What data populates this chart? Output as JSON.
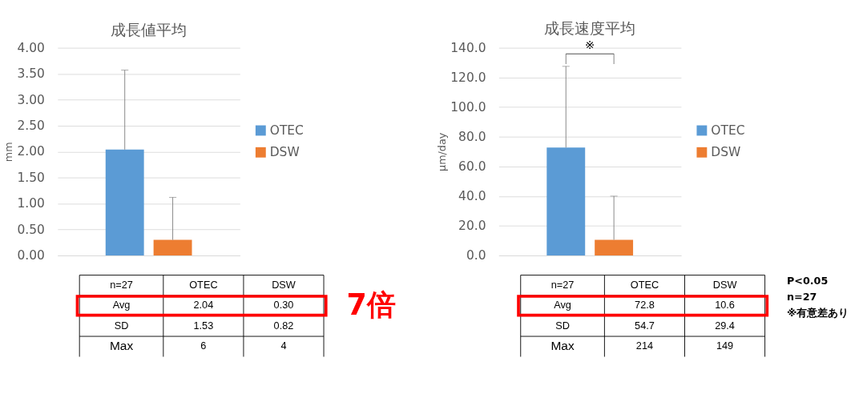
{
  "chart_data": [
    {
      "type": "bar",
      "title": "成長値平均",
      "ylabel": "mm",
      "categories": [
        null
      ],
      "ylim": [
        0,
        4
      ],
      "yticks": [
        {
          "value": 0,
          "label": "0.00"
        },
        {
          "value": 0.5,
          "label": "0.50"
        },
        {
          "value": 1,
          "label": "1.00"
        },
        {
          "value": 1.5,
          "label": "1.50"
        },
        {
          "value": 2,
          "label": "2.00"
        },
        {
          "value": 2.5,
          "label": "2.50"
        },
        {
          "value": 3,
          "label": "3.00"
        },
        {
          "value": 3.5,
          "label": "3.50"
        },
        {
          "value": 4,
          "label": "4.00"
        }
      ],
      "grid": "y",
      "legend": "right",
      "series": [
        {
          "name": "OTEC",
          "color": "#5b9bd5",
          "values": [
            2.04
          ],
          "errors": [
            [
              2.04,
              3.57
            ]
          ]
        },
        {
          "name": "DSW",
          "color": "#ed7d31",
          "values": [
            0.3
          ],
          "errors": [
            [
              0.3,
              1.12
            ]
          ]
        }
      ],
      "annotations": [
        "n=27",
        "OTEC",
        "DSW",
        "Avg",
        "2.04",
        "0.30",
        "SD",
        "1.53",
        "0.82",
        "Max",
        "6",
        "4",
        "7倍"
      ]
    },
    {
      "type": "bar",
      "title": "成長速度平均",
      "ylabel": "µm/day",
      "categories": [
        null
      ],
      "ylim": [
        0,
        140
      ],
      "yticks": [
        {
          "value": 0,
          "label": "0.0"
        },
        {
          "value": 20,
          "label": "20.0"
        },
        {
          "value": 40,
          "label": "40.0"
        },
        {
          "value": 60,
          "label": "60.0"
        },
        {
          "value": 80,
          "label": "80.0"
        },
        {
          "value": 100,
          "label": "100.0"
        },
        {
          "value": 120,
          "label": "120.0"
        },
        {
          "value": 140,
          "label": "140.0"
        }
      ],
      "grid": "y",
      "legend": "right",
      "series": [
        {
          "name": "OTEC",
          "color": "#5b9bd5",
          "values": [
            72.8
          ],
          "errors": [
            [
              72.8,
              127.5
            ]
          ]
        },
        {
          "name": "DSW",
          "color": "#ed7d31",
          "values": [
            10.6
          ],
          "errors": [
            [
              10.6,
              40.0
            ]
          ]
        }
      ],
      "annotations": [
        "n=27",
        "OTEC",
        "DSW",
        "Avg",
        "72.8",
        "10.6",
        "SD",
        "54.7",
        "29.4",
        "Max",
        "214",
        "149",
        "※",
        "P<0.05",
        "n=27",
        "※有意差あり"
      ]
    }
  ]
}
